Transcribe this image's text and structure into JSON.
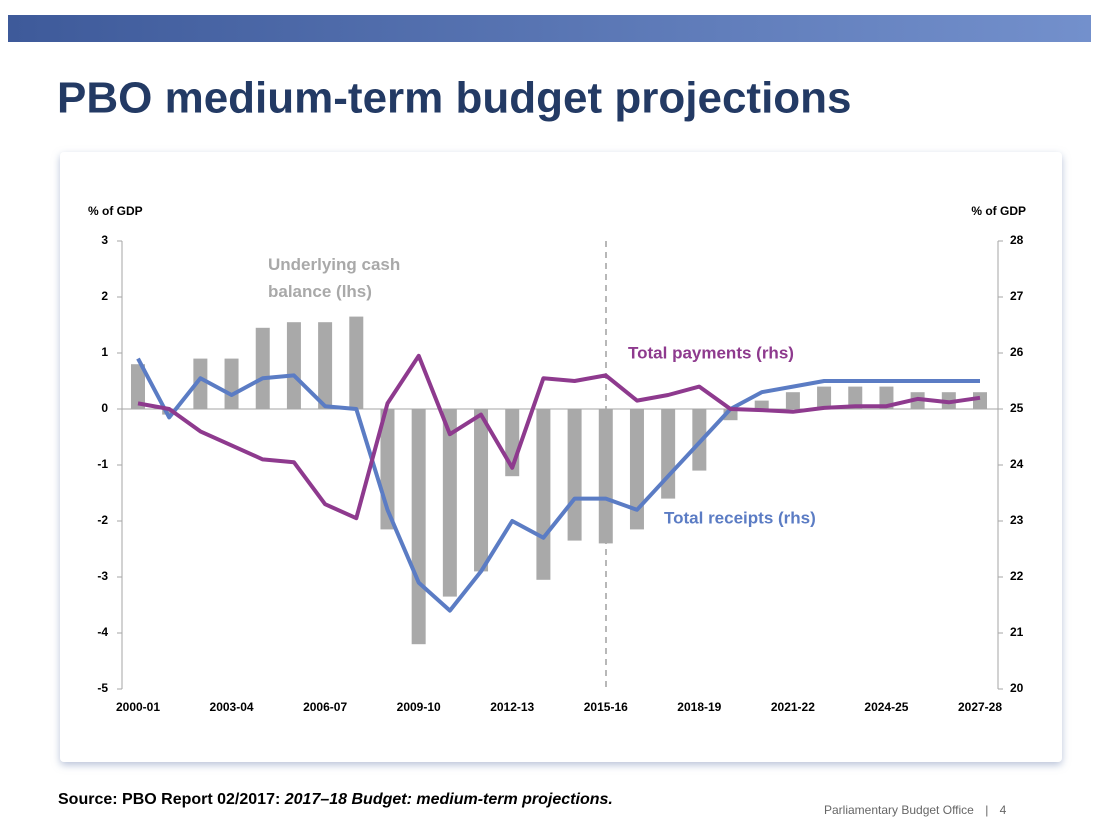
{
  "header": {
    "title": "PBO medium-term budget projections"
  },
  "chart_data": {
    "type": "bar",
    "categories": [
      "2000-01",
      null,
      null,
      "2003-04",
      null,
      null,
      "2006-07",
      null,
      null,
      "2009-10",
      null,
      null,
      "2012-13",
      null,
      null,
      "2015-16",
      null,
      null,
      "2018-19",
      null,
      null,
      "2021-22",
      null,
      null,
      "2024-25",
      null,
      null,
      "2027-28"
    ],
    "ylabel": "% of GDP",
    "y2label": "% of GDP",
    "ylim": [
      -5,
      3
    ],
    "yticks": [
      -5,
      -4,
      -3,
      -2,
      -1,
      0,
      1,
      2,
      3
    ],
    "y2lim": [
      20,
      28
    ],
    "y2ticks": [
      20,
      21,
      22,
      23,
      24,
      25,
      26,
      27,
      28
    ],
    "series": [
      {
        "name": "Underlying cash balance (lhs)",
        "type": "bar",
        "color": "#a9a9a9",
        "values": [
          0.8,
          -0.1,
          0.9,
          0.9,
          1.45,
          1.55,
          1.55,
          1.65,
          -2.15,
          -4.2,
          -3.35,
          -2.9,
          -1.2,
          -3.05,
          -2.35,
          -2.4,
          -2.15,
          -1.6,
          -1.1,
          -0.2,
          0.15,
          0.3,
          0.4,
          0.4,
          0.4,
          0.3,
          0.3,
          0.3
        ]
      },
      {
        "name": "Total receipts (rhs)",
        "type": "line",
        "axis": "y2",
        "color": "#5b7cc4",
        "values": [
          25.9,
          24.85,
          25.55,
          25.25,
          25.55,
          25.6,
          25.05,
          25.0,
          23.2,
          21.9,
          21.4,
          22.1,
          23.0,
          22.7,
          23.4,
          23.4,
          23.2,
          23.8,
          24.4,
          25.0,
          25.3,
          25.4,
          25.5,
          25.5,
          25.5,
          25.5,
          25.5,
          25.5
        ]
      },
      {
        "name": "Total payments (rhs)",
        "type": "line",
        "axis": "y2",
        "color": "#8e3a8e",
        "values": [
          25.1,
          25.0,
          24.6,
          24.35,
          24.1,
          24.05,
          23.3,
          23.05,
          25.1,
          25.95,
          24.55,
          24.9,
          23.95,
          25.55,
          25.5,
          25.6,
          25.15,
          25.25,
          25.4,
          25.0,
          24.98,
          24.95,
          25.02,
          25.05,
          25.05,
          25.18,
          25.12,
          25.2
        ]
      }
    ]
  },
  "footer": {
    "source": "Source: PBO Report 02/2017:",
    "source_title": "2017–18 Budget: medium-term projections.",
    "organization": "Parliamentary Budget Office",
    "separator": "|",
    "page": "4"
  }
}
